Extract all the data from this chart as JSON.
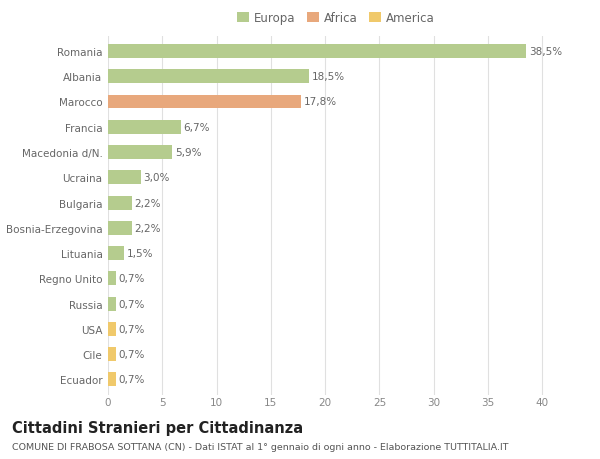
{
  "categories": [
    "Romania",
    "Albania",
    "Marocco",
    "Francia",
    "Macedonia d/N.",
    "Ucraina",
    "Bulgaria",
    "Bosnia-Erzegovina",
    "Lituania",
    "Regno Unito",
    "Russia",
    "USA",
    "Cile",
    "Ecuador"
  ],
  "values": [
    38.5,
    18.5,
    17.8,
    6.7,
    5.9,
    3.0,
    2.2,
    2.2,
    1.5,
    0.7,
    0.7,
    0.7,
    0.7,
    0.7
  ],
  "labels": [
    "38,5%",
    "18,5%",
    "17,8%",
    "6,7%",
    "5,9%",
    "3,0%",
    "2,2%",
    "2,2%",
    "1,5%",
    "0,7%",
    "0,7%",
    "0,7%",
    "0,7%",
    "0,7%"
  ],
  "continents": [
    "Europa",
    "Europa",
    "Africa",
    "Europa",
    "Europa",
    "Europa",
    "Europa",
    "Europa",
    "Europa",
    "Europa",
    "Europa",
    "America",
    "America",
    "America"
  ],
  "colors": {
    "Europa": "#b5cc8e",
    "Africa": "#e8a87c",
    "America": "#f0c96b"
  },
  "legend_items": [
    "Europa",
    "Africa",
    "America"
  ],
  "legend_colors": [
    "#b5cc8e",
    "#e8a87c",
    "#f0c96b"
  ],
  "xlim": [
    0,
    42
  ],
  "xticks": [
    0,
    5,
    10,
    15,
    20,
    25,
    30,
    35,
    40
  ],
  "title": "Cittadini Stranieri per Cittadinanza",
  "subtitle": "COMUNE DI FRABOSA SOTTANA (CN) - Dati ISTAT al 1° gennaio di ogni anno - Elaborazione TUTTITALIA.IT",
  "background_color": "#ffffff",
  "grid_color": "#e0e0e0",
  "bar_height": 0.55,
  "label_fontsize": 7.5,
  "tick_fontsize": 7.5,
  "title_fontsize": 10.5,
  "subtitle_fontsize": 6.8,
  "legend_fontsize": 8.5
}
